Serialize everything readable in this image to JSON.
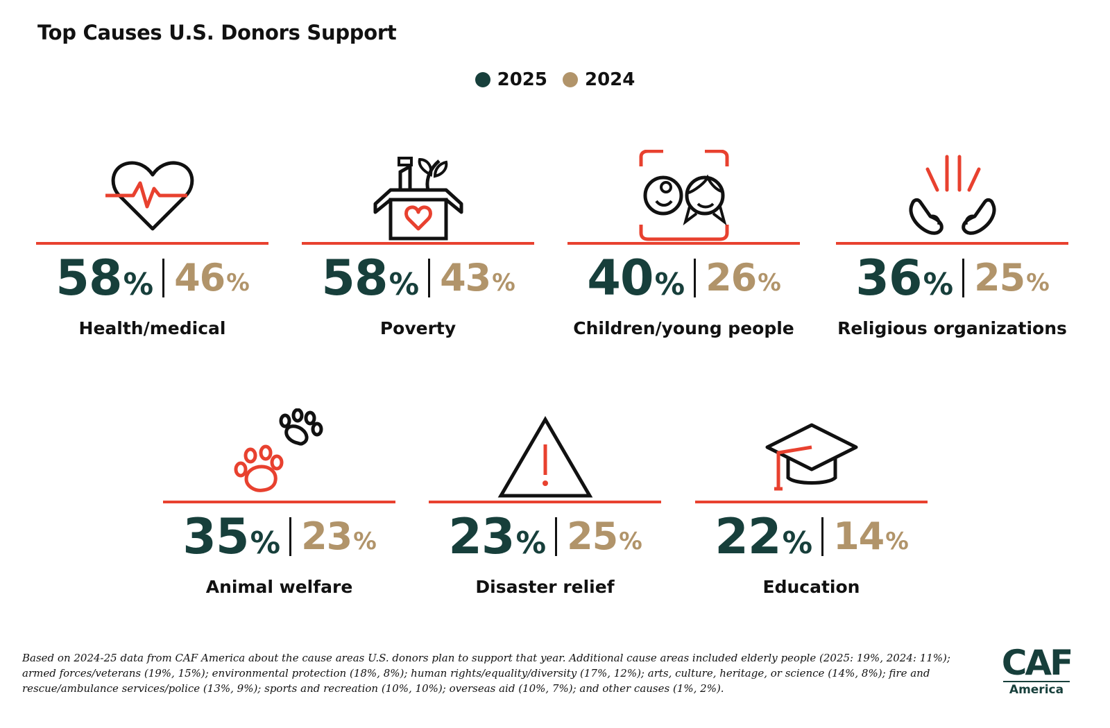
{
  "header": {
    "title": "Top Causes U.S. Donors Support"
  },
  "legend": [
    {
      "label": "2025",
      "color": "#173f3b"
    },
    {
      "label": "2024",
      "color": "#b1946a"
    }
  ],
  "chart_data": {
    "type": "table",
    "title": "Top Causes U.S. Donors Support",
    "series": [
      {
        "name": "2025",
        "color": "#173f3b",
        "values": [
          58,
          58,
          40,
          36,
          35,
          23,
          22
        ]
      },
      {
        "name": "2024",
        "color": "#b1946a",
        "values": [
          46,
          43,
          26,
          25,
          23,
          25,
          14
        ]
      }
    ],
    "categories": [
      "Health/medical",
      "Poverty",
      "Children/young people",
      "Religious organizations",
      "Animal welfare",
      "Disaster relief",
      "Education"
    ],
    "unit": "%"
  },
  "causes": [
    {
      "label": "Health/medical",
      "v2025": "58",
      "v2024": "46",
      "icon": "heart-pulse-icon"
    },
    {
      "label": "Poverty",
      "v2025": "58",
      "v2024": "43",
      "icon": "donation-box-icon"
    },
    {
      "label": "Children/young people",
      "v2025": "40",
      "v2024": "26",
      "icon": "children-faces-icon"
    },
    {
      "label": "Religious organizations",
      "v2025": "36",
      "v2024": "25",
      "icon": "praying-hands-icon"
    },
    {
      "label": "Animal welfare",
      "v2025": "35",
      "v2024": "23",
      "icon": "paw-prints-icon"
    },
    {
      "label": "Disaster relief",
      "v2025": "23",
      "v2024": "25",
      "icon": "warning-triangle-icon"
    },
    {
      "label": "Education",
      "v2025": "22",
      "v2024": "14",
      "icon": "graduation-cap-icon"
    }
  ],
  "percent_sign": "%",
  "footnote": "Based on 2024-25 data from CAF America about the cause areas U.S. donors plan to support that year. Additional cause areas included elderly people (2025: 19%, 2024: 11%); armed forces/veterans (19%, 15%); environmental protection (18%, 8%); human rights/equality/diversity (17%, 12%); arts, culture, heritage, or science (14%, 8%); fire and rescue/ambulance services/police (13%, 9%); sports and recreation (10%, 10%); overseas aid (10%, 7%); and other causes (1%, 2%).",
  "logo": {
    "main": "CAF",
    "sub": "America"
  }
}
